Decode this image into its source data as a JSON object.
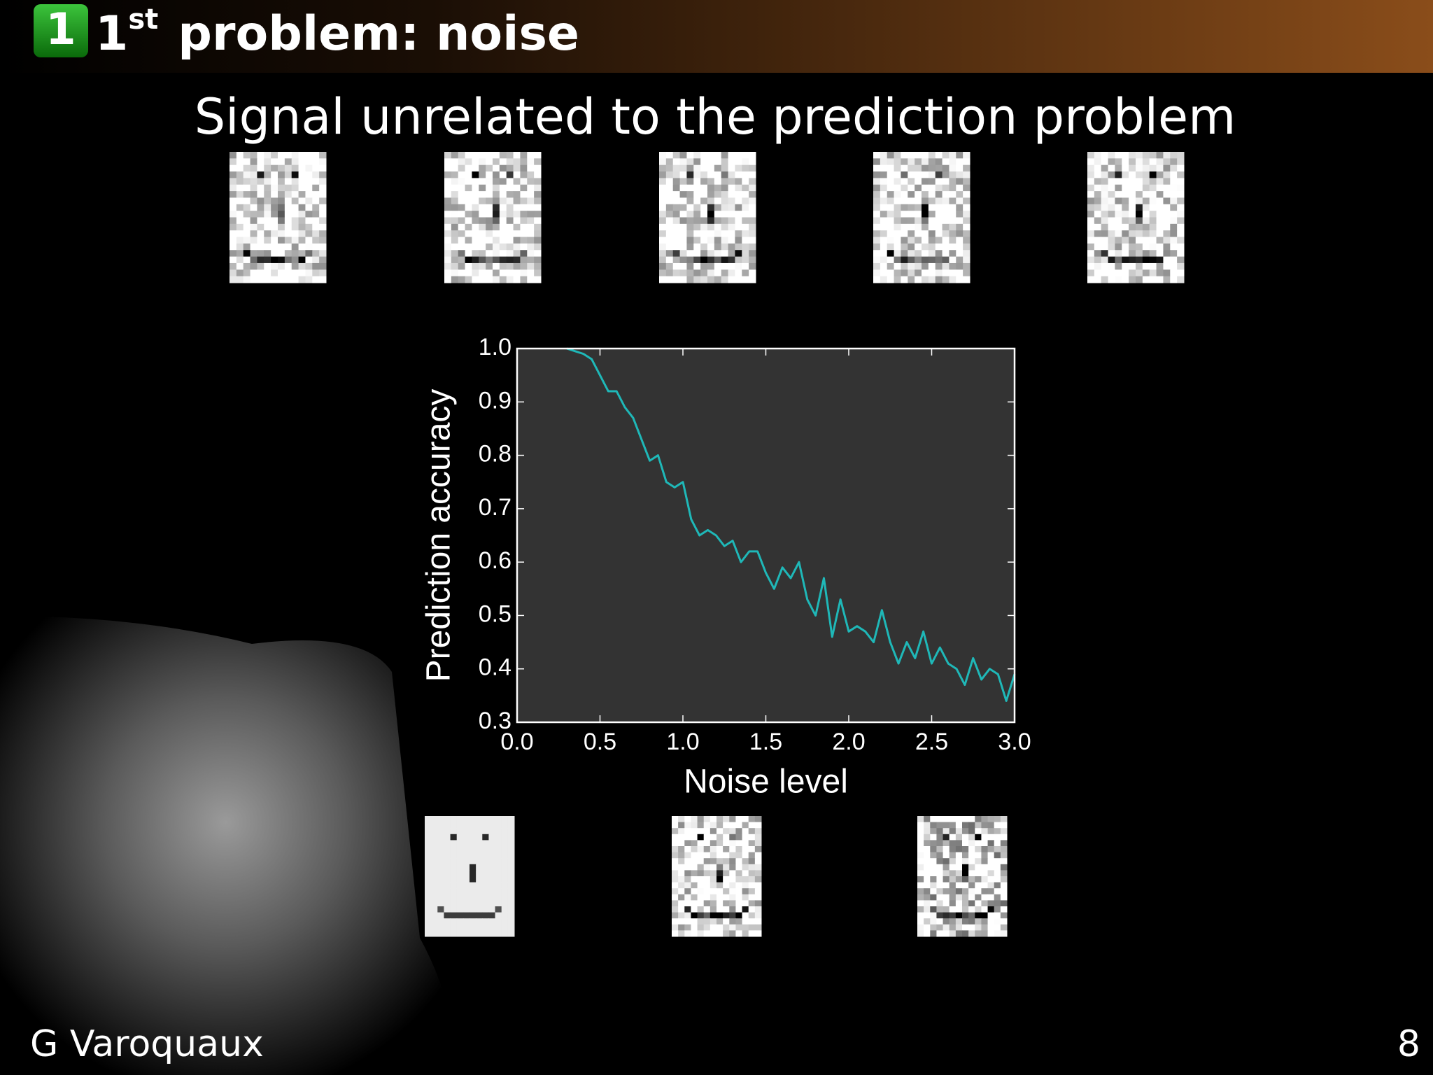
{
  "header": {
    "section_number": "1",
    "title_prefix": "1",
    "title_superscript": "st",
    "title_text": "problem: noise"
  },
  "subtitle": "Signal unrelated to the prediction problem",
  "chart_data": {
    "type": "line",
    "xlabel": "Noise level",
    "ylabel": "Prediction accuracy",
    "x": [
      0.3,
      0.35,
      0.4,
      0.45,
      0.5,
      0.55,
      0.6,
      0.65,
      0.7,
      0.75,
      0.8,
      0.85,
      0.9,
      0.95,
      1.0,
      1.05,
      1.1,
      1.15,
      1.2,
      1.25,
      1.3,
      1.35,
      1.4,
      1.45,
      1.5,
      1.55,
      1.6,
      1.65,
      1.7,
      1.75,
      1.8,
      1.85,
      1.9,
      1.95,
      2.0,
      2.05,
      2.1,
      2.15,
      2.2,
      2.25,
      2.3,
      2.35,
      2.4,
      2.45,
      2.5,
      2.55,
      2.6,
      2.65,
      2.7,
      2.75,
      2.8,
      2.85,
      2.9,
      2.95,
      3.0
    ],
    "series": [
      {
        "color": "#1fb8b8",
        "values": [
          1.0,
          0.995,
          0.99,
          0.98,
          0.95,
          0.92,
          0.92,
          0.89,
          0.87,
          0.83,
          0.79,
          0.8,
          0.75,
          0.74,
          0.75,
          0.68,
          0.65,
          0.66,
          0.65,
          0.63,
          0.64,
          0.6,
          0.62,
          0.62,
          0.58,
          0.55,
          0.59,
          0.57,
          0.6,
          0.53,
          0.5,
          0.57,
          0.46,
          0.53,
          0.47,
          0.48,
          0.47,
          0.45,
          0.51,
          0.45,
          0.41,
          0.45,
          0.42,
          0.47,
          0.41,
          0.44,
          0.41,
          0.4,
          0.37,
          0.42,
          0.38,
          0.4,
          0.39,
          0.34,
          0.39
        ]
      }
    ],
    "xlim": [
      0,
      3
    ],
    "ylim": [
      0.3,
      1
    ],
    "xticks": [
      {
        "value": 0,
        "label": "0.0"
      },
      0.5,
      {
        "value": 1,
        "label": "1.0"
      },
      1.5,
      {
        "value": 2,
        "label": "2.0"
      },
      2.5,
      {
        "value": 3,
        "label": "3.0"
      }
    ],
    "yticks": [
      0.3,
      0.4,
      0.5,
      0.6,
      0.7,
      0.8,
      0.9,
      {
        "value": 1,
        "label": "1.0"
      }
    ],
    "background": "#333333"
  },
  "footer": {
    "author": "G Varoquaux",
    "page": "8"
  }
}
